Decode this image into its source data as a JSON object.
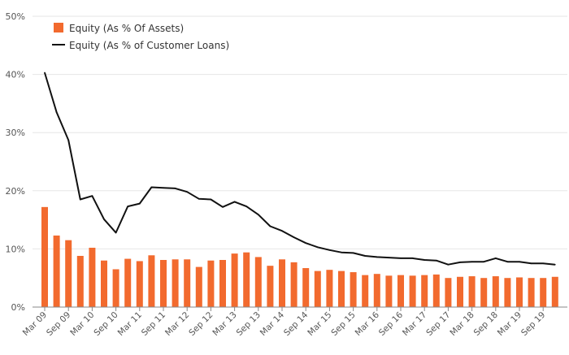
{
  "chart_data": {
    "type": "bar",
    "categories": [
      "Mar 09",
      "Jun 09",
      "Sep 09",
      "Dec 09",
      "Mar 10",
      "Jun 10",
      "Sep 10",
      "Dec 10",
      "Mar 11",
      "Jun 11",
      "Sep 11",
      "Dec 11",
      "Mar 12",
      "Jun 12",
      "Sep 12",
      "Dec 12",
      "Mar 13",
      "Jun 13",
      "Sep 13",
      "Dec 13",
      "Mar 14",
      "Jun 14",
      "Sep 14",
      "Dec 14",
      "Mar 15",
      "Jun 15",
      "Sep 15",
      "Dec 15",
      "Mar 16",
      "Jun 16",
      "Sep 16",
      "Dec 16",
      "Mar 17",
      "Jun 17",
      "Sep 17",
      "Dec 17",
      "Mar 18",
      "Jun 18",
      "Sep 18",
      "Dec 18",
      "Mar 19",
      "Jun 19",
      "Sep 19",
      "Dec 19"
    ],
    "x_tick_labels": [
      "Mar 09",
      "Sep 09",
      "Mar 10",
      "Sep 10",
      "Mar 11",
      "Sep 11",
      "Mar 12",
      "Sep 12",
      "Mar 13",
      "Sep 13",
      "Mar 14",
      "Sep 14",
      "Mar 15",
      "Sep 15",
      "Mar 16",
      "Sep 16",
      "Mar 17",
      "Sep 17",
      "Mar 18",
      "Sep 18",
      "Mar 19",
      "Sep 19"
    ],
    "y_tick_labels": [
      "0%",
      "10%",
      "20%",
      "30%",
      "40%",
      "50%"
    ],
    "ylim": [
      0,
      50
    ],
    "yticks": [
      0,
      10,
      20,
      30,
      40,
      50
    ],
    "grid": true,
    "legend_position": "top-left",
    "series": [
      {
        "name": "Equity (As % Of Assets)",
        "type": "bar",
        "color": "#f26a2e",
        "values": [
          17.2,
          12.3,
          11.5,
          8.8,
          10.2,
          8.0,
          6.5,
          8.3,
          7.9,
          8.9,
          8.1,
          8.2,
          8.2,
          6.9,
          8.0,
          8.1,
          9.2,
          9.4,
          8.6,
          7.1,
          8.2,
          7.7,
          6.7,
          6.2,
          6.4,
          6.2,
          6.0,
          5.5,
          5.7,
          5.4,
          5.5,
          5.4,
          5.5,
          5.6,
          5.0,
          5.2,
          5.3,
          5.0,
          5.3,
          5.0,
          5.1,
          5.0,
          5.0,
          5.2
        ]
      },
      {
        "name": "Equity (As % of Customer Loans)",
        "type": "line",
        "color": "#111111",
        "values": [
          40.3,
          33.5,
          28.7,
          18.5,
          19.1,
          15.1,
          12.8,
          17.3,
          17.8,
          20.6,
          20.5,
          20.4,
          19.8,
          18.6,
          18.5,
          17.2,
          18.1,
          17.3,
          15.9,
          13.9,
          13.1,
          12.0,
          11.0,
          10.3,
          9.8,
          9.4,
          9.3,
          8.8,
          8.6,
          8.5,
          8.4,
          8.4,
          8.1,
          8.0,
          7.3,
          7.7,
          7.8,
          7.8,
          8.4,
          7.8,
          7.8,
          7.5,
          7.5,
          7.3
        ]
      }
    ]
  }
}
